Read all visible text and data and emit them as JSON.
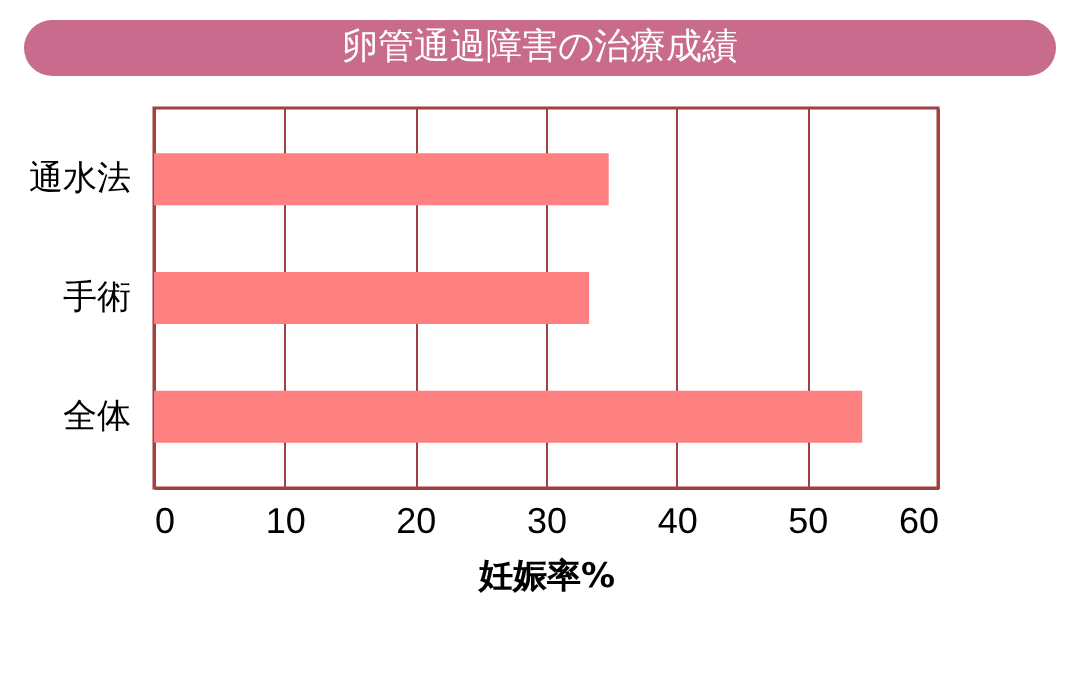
{
  "chart_data": {
    "type": "bar",
    "orientation": "horizontal",
    "title": "卵管通過障害の治療成績",
    "xlabel": "妊娠率%",
    "categories": [
      "通水法",
      "手術",
      "全体"
    ],
    "values": [
      34.8,
      33.3,
      54.2
    ],
    "color": "#ff8080",
    "xlim": [
      0,
      60
    ],
    "xticks": [
      0,
      10,
      20,
      30,
      40,
      50,
      60
    ],
    "grid": "x"
  }
}
